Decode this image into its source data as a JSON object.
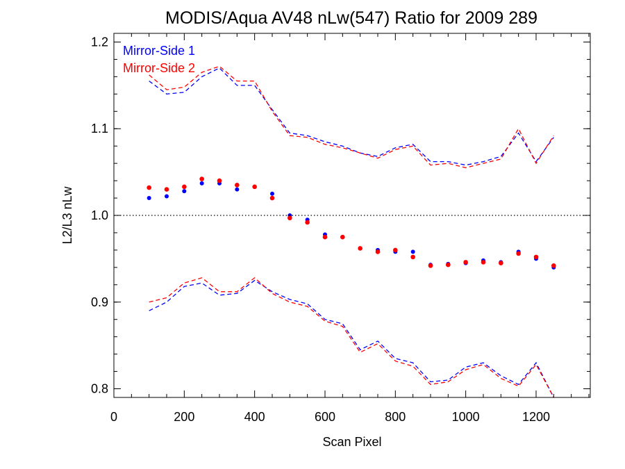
{
  "chart_data": {
    "type": "scatter",
    "title": "MODIS/Aqua AV48 nLw(547) Ratio for 2009 289",
    "xlabel": "Scan Pixel",
    "ylabel": "L2/L3 nLw",
    "xlim": [
      0,
      1354
    ],
    "ylim": [
      0.79,
      1.21
    ],
    "xticks": [
      "0",
      "200",
      "400",
      "600",
      "800",
      "1000",
      "1200"
    ],
    "xtick_values": [
      0,
      200,
      400,
      600,
      800,
      1000,
      1200
    ],
    "yticks": [
      "0.8",
      "0.9",
      "1.0",
      "1.1",
      "1.2"
    ],
    "ytick_values": [
      0.8,
      0.9,
      1.0,
      1.1,
      1.2
    ],
    "reference_line": 1.0,
    "legend": [
      {
        "label": "Mirror-Side 1",
        "color": "#0000ff"
      },
      {
        "label": "Mirror-Side 2",
        "color": "#ff0000"
      }
    ],
    "legend_position": "top-left",
    "series": [
      {
        "name": "Mirror-Side 1",
        "color": "#0000ff",
        "mean": {
          "x": [
            100,
            150,
            200,
            250,
            300,
            350,
            400,
            450,
            500,
            550,
            600,
            650,
            700,
            750,
            800,
            850,
            900,
            950,
            1000,
            1050,
            1100,
            1150,
            1200,
            1250
          ],
          "y": [
            1.02,
            1.022,
            1.028,
            1.037,
            1.037,
            1.03,
            1.033,
            1.025,
            1.0,
            0.995,
            0.978,
            0.975,
            0.962,
            0.96,
            0.958,
            0.958,
            0.943,
            0.944,
            0.945,
            0.948,
            0.946,
            0.958,
            0.95,
            0.94
          ]
        },
        "upper": {
          "x": [
            100,
            150,
            200,
            250,
            300,
            350,
            400,
            450,
            500,
            550,
            600,
            650,
            700,
            750,
            800,
            850,
            900,
            950,
            1000,
            1050,
            1100,
            1150,
            1200,
            1250
          ],
          "y": [
            1.155,
            1.14,
            1.142,
            1.16,
            1.17,
            1.15,
            1.15,
            1.122,
            1.095,
            1.092,
            1.085,
            1.08,
            1.072,
            1.068,
            1.078,
            1.082,
            1.062,
            1.062,
            1.058,
            1.062,
            1.068,
            1.095,
            1.062,
            1.09
          ]
        },
        "lower": {
          "x": [
            100,
            150,
            200,
            250,
            300,
            350,
            400,
            450,
            500,
            550,
            600,
            650,
            700,
            750,
            800,
            850,
            900,
            950,
            1000,
            1050,
            1100,
            1150,
            1200,
            1250
          ],
          "y": [
            0.89,
            0.9,
            0.918,
            0.922,
            0.908,
            0.91,
            0.925,
            0.912,
            0.903,
            0.898,
            0.88,
            0.875,
            0.845,
            0.855,
            0.835,
            0.83,
            0.808,
            0.81,
            0.825,
            0.83,
            0.815,
            0.805,
            0.83,
            0.79
          ]
        }
      },
      {
        "name": "Mirror-Side 2",
        "color": "#ff0000",
        "mean": {
          "x": [
            100,
            150,
            200,
            250,
            300,
            350,
            400,
            450,
            500,
            550,
            600,
            650,
            700,
            750,
            800,
            850,
            900,
            950,
            1000,
            1050,
            1100,
            1150,
            1200,
            1250
          ],
          "y": [
            1.032,
            1.03,
            1.033,
            1.042,
            1.04,
            1.035,
            1.033,
            1.02,
            0.997,
            0.992,
            0.975,
            0.975,
            0.962,
            0.958,
            0.96,
            0.952,
            0.942,
            0.943,
            0.946,
            0.946,
            0.945,
            0.956,
            0.952,
            0.942
          ]
        },
        "upper": {
          "x": [
            100,
            150,
            200,
            250,
            300,
            350,
            400,
            450,
            500,
            550,
            600,
            650,
            700,
            750,
            800,
            850,
            900,
            950,
            1000,
            1050,
            1100,
            1150,
            1200,
            1250
          ],
          "y": [
            1.162,
            1.145,
            1.148,
            1.165,
            1.172,
            1.155,
            1.155,
            1.12,
            1.092,
            1.09,
            1.082,
            1.078,
            1.072,
            1.066,
            1.076,
            1.08,
            1.058,
            1.06,
            1.055,
            1.06,
            1.065,
            1.1,
            1.06,
            1.092
          ]
        },
        "lower": {
          "x": [
            100,
            150,
            200,
            250,
            300,
            350,
            400,
            450,
            500,
            550,
            600,
            650,
            700,
            750,
            800,
            850,
            900,
            950,
            1000,
            1050,
            1100,
            1150,
            1200,
            1250
          ],
          "y": [
            0.9,
            0.905,
            0.922,
            0.928,
            0.912,
            0.912,
            0.928,
            0.91,
            0.9,
            0.895,
            0.878,
            0.872,
            0.842,
            0.852,
            0.832,
            0.826,
            0.805,
            0.808,
            0.822,
            0.828,
            0.812,
            0.803,
            0.828,
            0.79
          ]
        }
      }
    ]
  }
}
